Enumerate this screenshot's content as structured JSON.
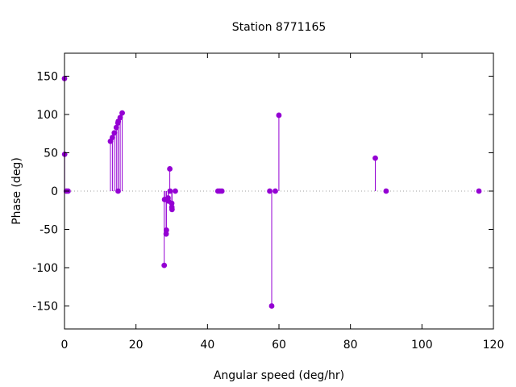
{
  "chart_data": {
    "type": "scatter",
    "title": "Station 8771165",
    "xlabel": "Angular speed (deg/hr)",
    "ylabel": "Phase (deg)",
    "xlim": [
      0,
      120
    ],
    "ylim": [
      -180,
      180
    ],
    "xticks": [
      0,
      20,
      40,
      60,
      80,
      100,
      120
    ],
    "yticks": [
      -150,
      -100,
      -50,
      0,
      50,
      100,
      150
    ],
    "xtick_labels": [
      "0",
      "20",
      "40",
      "60",
      "80",
      "100",
      "120"
    ],
    "ytick_labels": [
      "-150",
      "-100",
      "-50",
      "0",
      "50",
      "100",
      "150"
    ],
    "grid": false,
    "zero_line": "dotted",
    "style": "impulses-with-points",
    "color": "#9400d3",
    "series": [
      {
        "x": [
          0.0,
          0.04,
          0.5,
          1.0,
          12.85,
          13.4,
          13.94,
          14.5,
          14.96,
          15.0,
          15.04,
          15.58,
          16.14,
          27.9,
          28.0,
          28.44,
          28.51,
          28.98,
          29.06,
          29.46,
          29.53,
          30.0,
          30.08,
          30.04,
          31.0,
          42.93,
          43.48,
          44.03,
          57.42,
          57.97,
          58.98,
          59.98,
          86.95,
          89.98,
          115.94
        ],
        "y": [
          147,
          48,
          0,
          0,
          65,
          70,
          76,
          83,
          89,
          0,
          91,
          96,
          102,
          -97,
          -11,
          -56,
          -51,
          -9,
          -13,
          29,
          0,
          -16,
          -24,
          -21,
          0,
          0,
          0,
          0,
          0,
          -150,
          0,
          99,
          43,
          0,
          0
        ]
      }
    ]
  }
}
